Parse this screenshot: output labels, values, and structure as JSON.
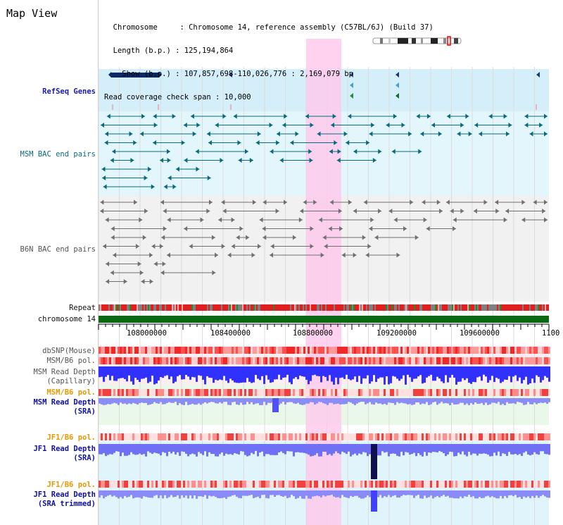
{
  "header": {
    "title": "Map View",
    "info_lines": [
      "  Chromosome     : Chromosome 14, reference assembly (C57BL/6J) (Build 37)",
      "  Length (b.p.) : 125,194,864",
      "    Show (b.p.) : 107,857,698-110,026,776 : 2,169,079 bp",
      "Read coverage check span : 10,000"
    ]
  },
  "tracks": {
    "refseq": "RefSeq Genes",
    "msm_bac": "MSM BAC end pairs",
    "b6n_bac": "B6N BAC end pairs",
    "repeat": "Repeat",
    "chromosome": "chromosome 14",
    "dbsnp": "dbSNP(Mouse)",
    "msm_b6_pol_1": "MSM/B6 pol.",
    "msm_read_depth_cap_1": "MSM Read Depth",
    "msm_read_depth_cap_2": "(Capillary)",
    "msm_b6_pol_2": "MSM/B6 pol.",
    "msm_read_depth_sra_1": "MSM Read Depth",
    "msm_read_depth_sra_2": "(SRA)",
    "jf1_b6_pol_1": "JF1/B6 pol.",
    "jf1_read_depth_sra_1": "JF1 Read Depth",
    "jf1_read_depth_sra_2": "(SRA)",
    "jf1_b6_pol_2": "JF1/B6 pol.",
    "jf1_read_depth_trim_1": "JF1 Read Depth",
    "jf1_read_depth_trim_2": "(SRA trimmed)"
  },
  "axis": {
    "ticks": [
      "108000000",
      "108400000",
      "108800000",
      "109200000",
      "109600000",
      "1100"
    ]
  },
  "colors": {
    "refseq_bg": "#d4eefa",
    "msm_bg": "#e3f6fb",
    "b6n_bg": "#f1f1f1",
    "highlight": "#ffc8ec",
    "chromosome": "#0a6a14",
    "pol_red": "#f03030",
    "depth_blue": "#4040ff",
    "depth_light": "#9a9af8"
  }
}
